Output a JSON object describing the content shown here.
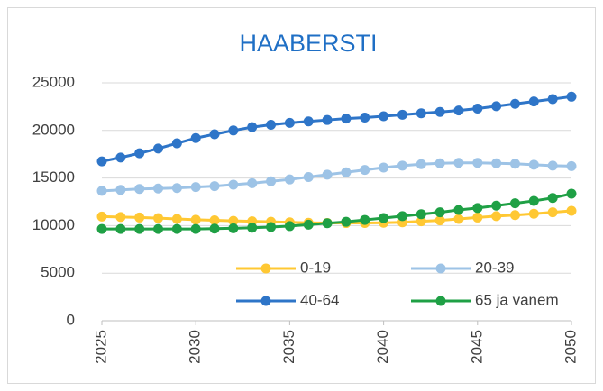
{
  "chart_data": {
    "type": "line",
    "title": "HAABERSTI",
    "x": [
      2025,
      2026,
      2027,
      2028,
      2029,
      2030,
      2031,
      2032,
      2033,
      2034,
      2035,
      2036,
      2037,
      2038,
      2039,
      2040,
      2041,
      2042,
      2043,
      2044,
      2045,
      2046,
      2047,
      2048,
      2049,
      2050
    ],
    "xlim": [
      2025,
      2050
    ],
    "xticks": [
      2025,
      2030,
      2035,
      2040,
      2045,
      2050
    ],
    "ylim": [
      0,
      25000
    ],
    "yticks": [
      0,
      5000,
      10000,
      15000,
      20000,
      25000
    ],
    "grid": true,
    "series": [
      {
        "name": "0-19",
        "color": "#FFC833",
        "values": [
          10950,
          10900,
          10850,
          10780,
          10700,
          10620,
          10560,
          10500,
          10450,
          10400,
          10350,
          10300,
          10280,
          10270,
          10280,
          10300,
          10350,
          10450,
          10550,
          10700,
          10850,
          11000,
          11100,
          11250,
          11400,
          11550
        ]
      },
      {
        "name": "20-39",
        "color": "#9DC3E6",
        "values": [
          13650,
          13750,
          13850,
          13900,
          13950,
          14050,
          14150,
          14300,
          14450,
          14650,
          14850,
          15100,
          15350,
          15600,
          15850,
          16100,
          16300,
          16450,
          16550,
          16600,
          16600,
          16550,
          16500,
          16400,
          16300,
          16250
        ]
      },
      {
        "name": "40-64",
        "color": "#2E75C8",
        "values": [
          16750,
          17150,
          17600,
          18100,
          18650,
          19200,
          19600,
          20000,
          20350,
          20600,
          20800,
          20950,
          21100,
          21250,
          21350,
          21500,
          21650,
          21800,
          21950,
          22100,
          22300,
          22550,
          22800,
          23050,
          23300,
          23550
        ]
      },
      {
        "name": "65 ja vanem",
        "color": "#1FA045",
        "values": [
          9650,
          9650,
          9650,
          9650,
          9650,
          9650,
          9680,
          9720,
          9780,
          9850,
          9950,
          10100,
          10250,
          10400,
          10600,
          10800,
          11000,
          11200,
          11400,
          11650,
          11850,
          12100,
          12350,
          12600,
          12900,
          13350
        ]
      }
    ]
  }
}
